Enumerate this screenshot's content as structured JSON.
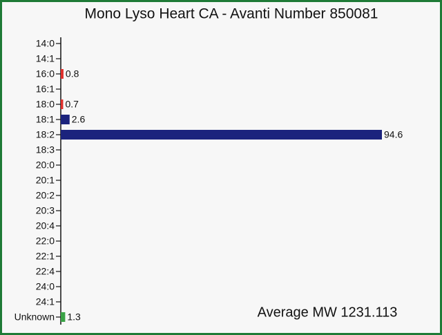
{
  "chart_data": {
    "type": "hbar",
    "title": "Mono Lyso Heart CA - Avanti Number 850081",
    "annotation": "Average MW 1231.113",
    "categories": [
      "14:0",
      "14:1",
      "16:0",
      "16:1",
      "18:0",
      "18:1",
      "18:2",
      "18:3",
      "20:0",
      "20:1",
      "20:2",
      "20:3",
      "20:4",
      "22:0",
      "22:1",
      "22:4",
      "24:0",
      "24:1",
      "Unknown"
    ],
    "values": [
      null,
      null,
      0.8,
      null,
      0.7,
      2.6,
      94.6,
      null,
      null,
      null,
      null,
      null,
      null,
      null,
      null,
      null,
      null,
      null,
      1.3
    ],
    "colors": [
      null,
      null,
      "#e0302c",
      null,
      "#e0302c",
      "#1b237d",
      "#1b237d",
      null,
      null,
      null,
      null,
      null,
      null,
      null,
      null,
      null,
      null,
      null,
      "#3aa346"
    ]
  }
}
